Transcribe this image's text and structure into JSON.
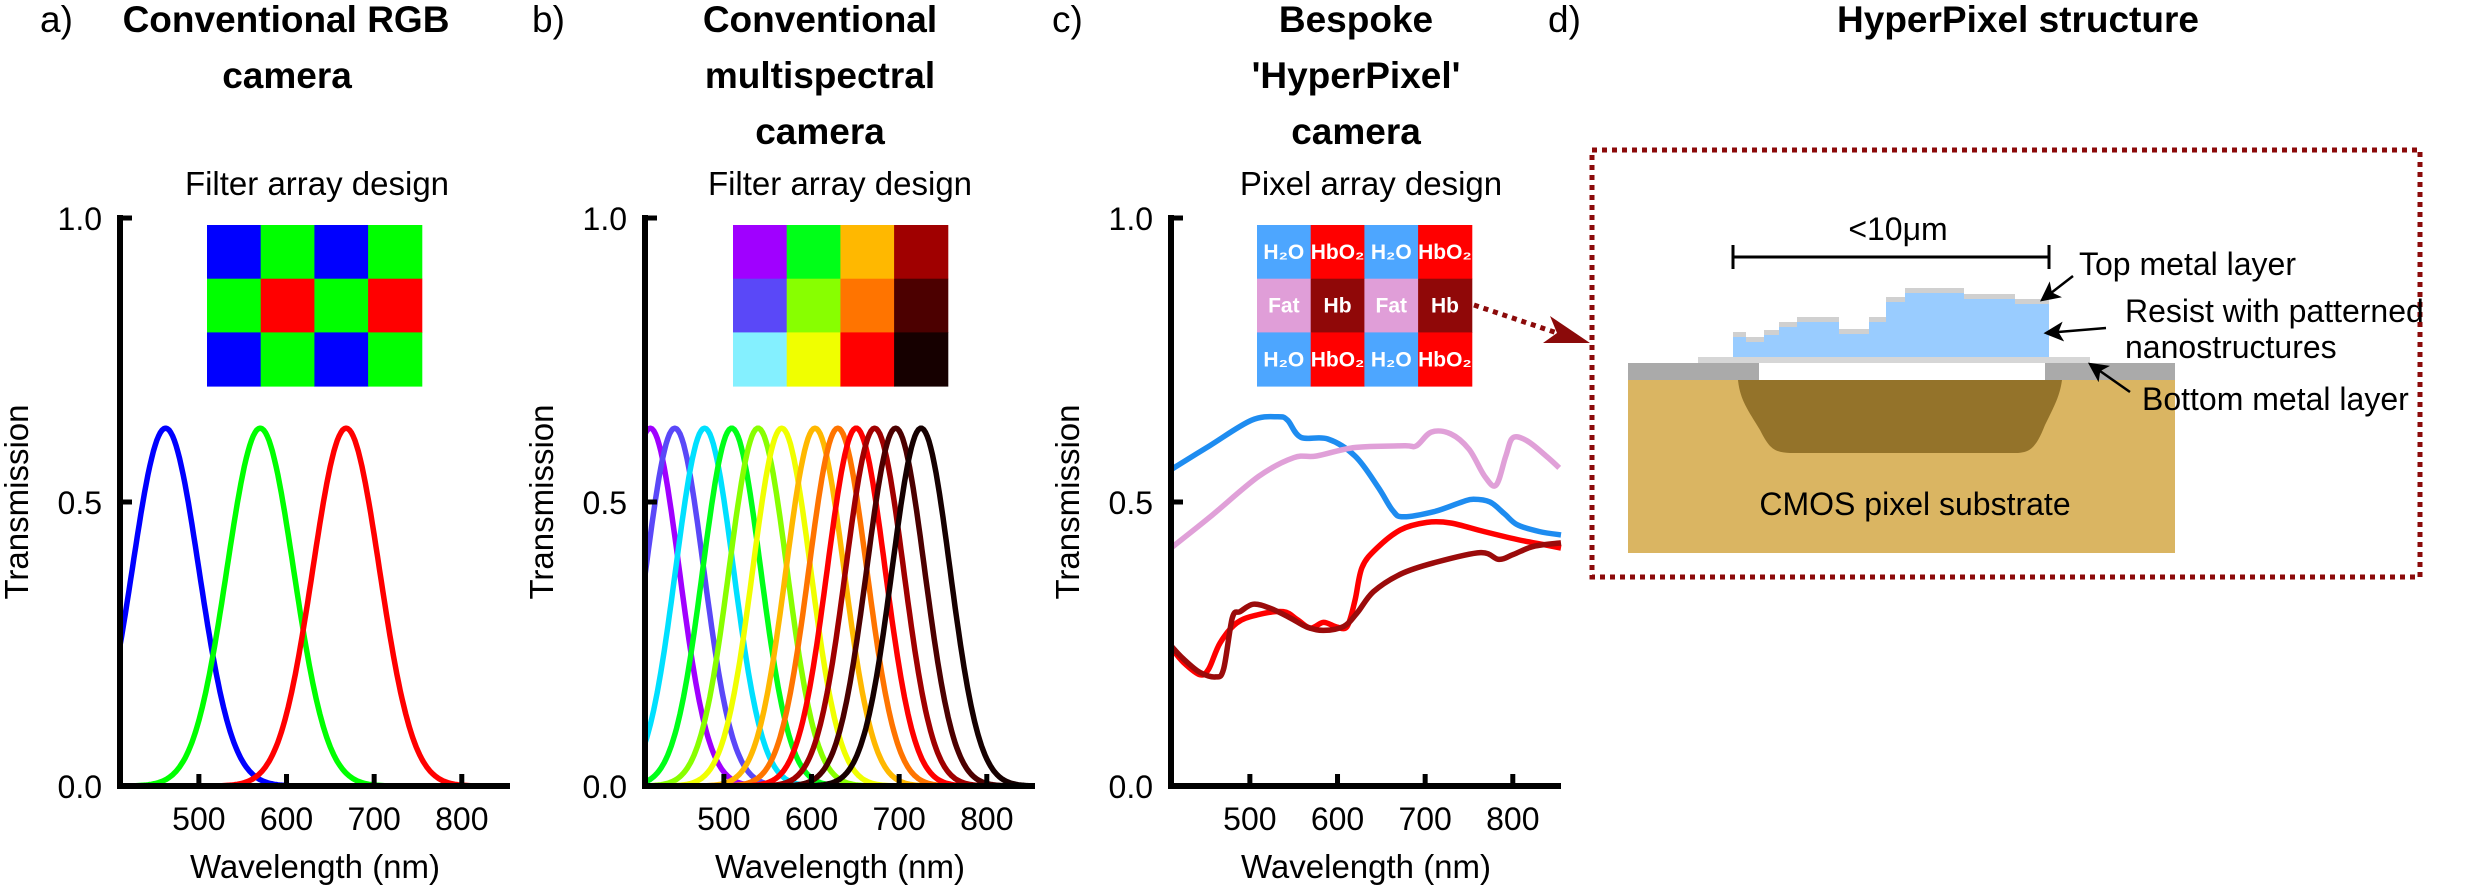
{
  "panels": [
    {
      "label": "a)",
      "title_lines": [
        "Conventional RGB",
        "camera"
      ],
      "inset_title": "Filter array design",
      "inset_grid": [
        [
          {
            "color": "#0000ff"
          },
          {
            "color": "#00ff00"
          },
          {
            "color": "#0000ff"
          },
          {
            "color": "#00ff00"
          }
        ],
        [
          {
            "color": "#00ff00"
          },
          {
            "color": "#ff0000"
          },
          {
            "color": "#00ff00"
          },
          {
            "color": "#ff0000"
          }
        ],
        [
          {
            "color": "#0000ff"
          },
          {
            "color": "#00ff00"
          },
          {
            "color": "#0000ff"
          },
          {
            "color": "#00ff00"
          }
        ]
      ]
    },
    {
      "label": "b)",
      "title_lines": [
        "Conventional",
        "multispectral",
        "camera"
      ],
      "inset_title": "Filter array design",
      "inset_grid": [
        [
          {
            "color": "#a000ff"
          },
          {
            "color": "#00ff18"
          },
          {
            "color": "#ffb800"
          },
          {
            "color": "#a00000"
          }
        ],
        [
          {
            "color": "#5a48f8"
          },
          {
            "color": "#88ff00"
          },
          {
            "color": "#ff7400"
          },
          {
            "color": "#4c0000"
          }
        ],
        [
          {
            "color": "#84f0ff"
          },
          {
            "color": "#f0ff00"
          },
          {
            "color": "#ff0000"
          },
          {
            "color": "#160000"
          }
        ]
      ]
    },
    {
      "label": "c)",
      "title_lines": [
        "Bespoke",
        "'HyperPixel'",
        "camera"
      ],
      "inset_title": "Pixel array design",
      "inset_grid": [
        [
          {
            "color": "#4da6ff",
            "text": "H₂O"
          },
          {
            "color": "#ff0000",
            "text": "HbO₂"
          },
          {
            "color": "#4da6ff",
            "text": "H₂O"
          },
          {
            "color": "#ff0000",
            "text": "HbO₂"
          }
        ],
        [
          {
            "color": "#e09ed8",
            "text": "Fat"
          },
          {
            "color": "#900808",
            "text": "Hb"
          },
          {
            "color": "#e09ed8",
            "text": "Fat"
          },
          {
            "color": "#900808",
            "text": "Hb"
          }
        ],
        [
          {
            "color": "#4da6ff",
            "text": "H₂O"
          },
          {
            "color": "#ff0000",
            "text": "HbO₂"
          },
          {
            "color": "#4da6ff",
            "text": "H₂O"
          },
          {
            "color": "#ff0000",
            "text": "HbO₂"
          }
        ]
      ]
    }
  ],
  "diagram": {
    "label": "d)",
    "title": "HyperPixel structure",
    "scale_bar": "<10μm",
    "top_metal": "Top metal layer",
    "resist_line1": "Resist with patterned",
    "resist_line2": "nanostructures",
    "bottom_metal": "Bottom metal layer",
    "substrate": "CMOS pixel substrate",
    "colors": {
      "border": "#8b0a0a",
      "resist": "#99ccff",
      "metal": "#aaaaaa",
      "substrate": "#dab562",
      "photodiode": "#94732a"
    }
  },
  "chart_data": [
    {
      "type": "line",
      "xlabel": "Wavelength (nm)",
      "ylabel": "Transmission",
      "xlim": [
        410,
        855
      ],
      "ylim": [
        0,
        1
      ],
      "xticks": [
        {
          "value": 500,
          "label": "500"
        },
        {
          "value": 600,
          "label": "600"
        },
        {
          "value": 700,
          "label": "700"
        },
        {
          "value": 800,
          "label": "800"
        }
      ],
      "yticks": [
        {
          "value": 0,
          "label": "0.0"
        },
        {
          "value": 0.5,
          "label": "0.5"
        },
        {
          "value": 1,
          "label": "1.0"
        }
      ],
      "grid": false,
      "series": [
        {
          "color": "#0000ff",
          "shape": "gaussian",
          "peak_nm": 462,
          "peak_transmission": 0.63,
          "sigma_nm": 38
        },
        {
          "color": "#00ff00",
          "shape": "gaussian",
          "peak_nm": 570,
          "peak_transmission": 0.63,
          "sigma_nm": 38
        },
        {
          "color": "#ff0000",
          "shape": "gaussian",
          "peak_nm": 668,
          "peak_transmission": 0.63,
          "sigma_nm": 38
        }
      ]
    },
    {
      "type": "line",
      "xlabel": "Wavelength (nm)",
      "ylabel": "Transmission",
      "xlim": [
        410,
        855
      ],
      "ylim": [
        0,
        1
      ],
      "xticks": [
        {
          "value": 500,
          "label": "500"
        },
        {
          "value": 600,
          "label": "600"
        },
        {
          "value": 700,
          "label": "700"
        },
        {
          "value": 800,
          "label": "800"
        }
      ],
      "yticks": [
        {
          "value": 0,
          "label": "0.0"
        },
        {
          "value": 0.5,
          "label": "0.5"
        },
        {
          "value": 1,
          "label": "1.0"
        }
      ],
      "grid": false,
      "series": [
        {
          "color": "#a000ff",
          "shape": "gaussian",
          "peak_nm": 416,
          "peak_transmission": 0.63,
          "sigma_nm": 33
        },
        {
          "color": "#5a48f8",
          "shape": "gaussian",
          "peak_nm": 444,
          "peak_transmission": 0.63,
          "sigma_nm": 33
        },
        {
          "color": "#00e0ff",
          "shape": "gaussian",
          "peak_nm": 478,
          "peak_transmission": 0.63,
          "sigma_nm": 33
        },
        {
          "color": "#00ff18",
          "shape": "gaussian",
          "peak_nm": 509,
          "peak_transmission": 0.63,
          "sigma_nm": 33
        },
        {
          "color": "#88ff00",
          "shape": "gaussian",
          "peak_nm": 539,
          "peak_transmission": 0.63,
          "sigma_nm": 33
        },
        {
          "color": "#f0ff00",
          "shape": "gaussian",
          "peak_nm": 566,
          "peak_transmission": 0.63,
          "sigma_nm": 33
        },
        {
          "color": "#ffb800",
          "shape": "gaussian",
          "peak_nm": 604,
          "peak_transmission": 0.63,
          "sigma_nm": 33
        },
        {
          "color": "#ff7400",
          "shape": "gaussian",
          "peak_nm": 630,
          "peak_transmission": 0.63,
          "sigma_nm": 33
        },
        {
          "color": "#ff0000",
          "shape": "gaussian",
          "peak_nm": 651,
          "peak_transmission": 0.63,
          "sigma_nm": 33
        },
        {
          "color": "#a00000",
          "shape": "gaussian",
          "peak_nm": 672,
          "peak_transmission": 0.63,
          "sigma_nm": 33
        },
        {
          "color": "#4c0000",
          "shape": "gaussian",
          "peak_nm": 696,
          "peak_transmission": 0.63,
          "sigma_nm": 33
        },
        {
          "color": "#160000",
          "shape": "gaussian",
          "peak_nm": 725,
          "peak_transmission": 0.63,
          "sigma_nm": 33
        }
      ]
    },
    {
      "type": "line",
      "xlabel": "Wavelength (nm)",
      "ylabel": "Transmission",
      "xlim": [
        410,
        855
      ],
      "ylim": [
        0,
        1
      ],
      "xticks": [
        {
          "value": 500,
          "label": "500"
        },
        {
          "value": 600,
          "label": "600"
        },
        {
          "value": 700,
          "label": "700"
        },
        {
          "value": 800,
          "label": "800"
        }
      ],
      "yticks": [
        {
          "value": 0,
          "label": "0.0"
        },
        {
          "value": 0.5,
          "label": "0.5"
        },
        {
          "value": 1,
          "label": "1.0"
        }
      ],
      "grid": false,
      "series": [
        {
          "color": "#1e8cf0",
          "x": [
            410,
            454,
            502,
            532,
            543,
            558,
            589,
            620,
            646,
            663,
            675,
            710,
            742,
            755,
            774,
            790,
            805,
            830,
            855
          ],
          "y": [
            0.557,
            0.599,
            0.644,
            0.65,
            0.644,
            0.614,
            0.611,
            0.581,
            0.527,
            0.485,
            0.474,
            0.483,
            0.5,
            0.505,
            0.5,
            0.48,
            0.46,
            0.448,
            0.442
          ]
        },
        {
          "color": "#e0a0d8",
          "x": [
            410,
            454,
            510,
            550,
            576,
            620,
            676,
            690,
            707,
            729,
            750,
            768,
            781,
            792,
            800,
            816,
            838,
            853
          ],
          "y": [
            0.419,
            0.473,
            0.545,
            0.578,
            0.581,
            0.596,
            0.599,
            0.599,
            0.623,
            0.62,
            0.593,
            0.545,
            0.53,
            0.581,
            0.613,
            0.608,
            0.581,
            0.56
          ]
        },
        {
          "color": "#ff0000",
          "x": [
            410,
            424,
            443,
            453,
            466,
            485,
            508,
            538,
            554,
            569,
            584,
            599,
            611,
            620,
            628,
            645,
            672,
            702,
            729,
            767,
            805,
            835,
            855
          ],
          "y": [
            0.244,
            0.218,
            0.196,
            0.206,
            0.252,
            0.287,
            0.301,
            0.307,
            0.293,
            0.278,
            0.288,
            0.28,
            0.281,
            0.327,
            0.385,
            0.419,
            0.451,
            0.464,
            0.463,
            0.448,
            0.434,
            0.425,
            0.419
          ]
        },
        {
          "color": "#9b0b0b",
          "x": [
            410,
            424,
            443,
            461,
            470,
            480,
            489,
            504,
            523,
            546,
            565,
            584,
            607,
            622,
            641,
            672,
            710,
            763,
            784,
            801,
            824,
            855
          ],
          "y": [
            0.247,
            0.224,
            0.2,
            0.192,
            0.206,
            0.296,
            0.307,
            0.32,
            0.313,
            0.296,
            0.28,
            0.274,
            0.281,
            0.304,
            0.342,
            0.373,
            0.393,
            0.411,
            0.399,
            0.408,
            0.422,
            0.428
          ]
        }
      ]
    }
  ]
}
